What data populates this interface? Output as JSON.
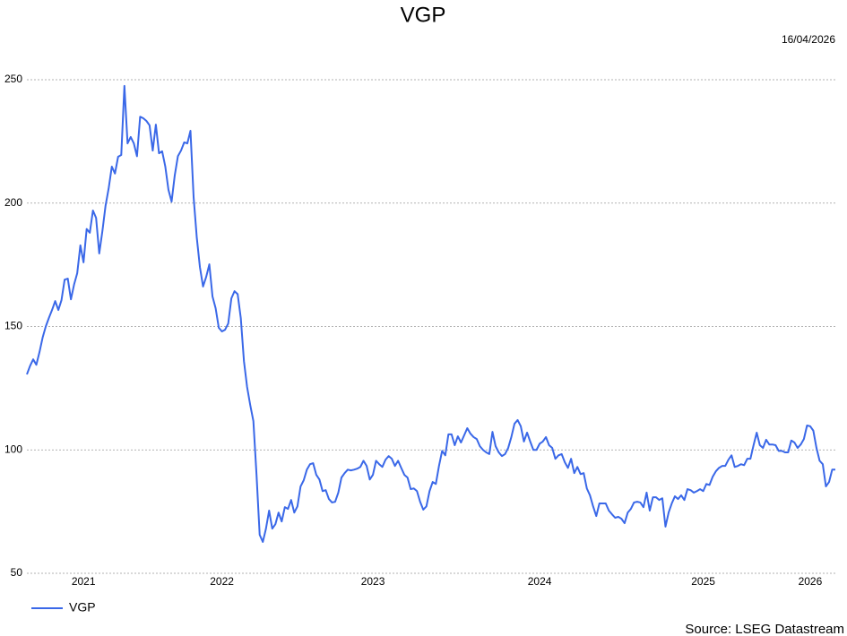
{
  "chart_data": {
    "type": "line",
    "title": "VGP",
    "date": "16/04/2026",
    "source": "Source: LSEG Datastream",
    "categories": [
      null,
      null,
      null,
      null,
      null,
      null,
      null,
      null,
      null,
      null,
      null,
      null,
      null,
      null,
      null,
      null,
      null,
      null,
      "2021",
      null,
      null,
      null,
      null,
      null,
      null,
      null,
      null,
      null,
      null,
      null,
      null,
      null,
      null,
      null,
      null,
      null,
      null,
      null,
      null,
      null,
      null,
      null,
      null,
      null,
      null,
      null,
      null,
      null,
      null,
      null,
      null,
      null,
      null,
      null,
      null,
      null,
      null,
      null,
      null,
      null,
      null,
      null,
      "2022",
      null,
      null,
      null,
      null,
      null,
      null,
      null,
      null,
      null,
      null,
      null,
      null,
      null,
      null,
      null,
      null,
      null,
      null,
      null,
      null,
      null,
      null,
      null,
      null,
      null,
      null,
      null,
      null,
      null,
      null,
      null,
      null,
      null,
      null,
      null,
      null,
      null,
      null,
      null,
      null,
      null,
      null,
      null,
      null,
      null,
      null,
      null,
      "2023",
      null,
      null,
      null,
      null,
      null,
      null,
      null,
      null,
      null,
      null,
      null,
      null,
      null,
      null,
      null,
      null,
      null,
      null,
      null,
      null,
      null,
      null,
      null,
      null,
      null,
      null,
      null,
      null,
      null,
      null,
      null,
      null,
      null,
      null,
      null,
      null,
      null,
      null,
      null,
      null,
      null,
      null,
      null,
      null,
      null,
      null,
      null,
      null,
      null,
      null,
      null,
      null,
      "2024",
      null,
      null,
      null,
      null,
      null,
      null,
      null,
      null,
      null,
      null,
      null,
      null,
      null,
      null,
      null,
      null,
      null,
      null,
      null,
      null,
      null,
      null,
      null,
      null,
      null,
      null,
      null,
      null,
      null,
      null,
      null,
      null,
      null,
      null,
      null,
      null,
      null,
      null,
      null,
      null,
      null,
      null,
      null,
      null,
      null,
      null,
      null,
      null,
      null,
      null,
      null,
      "2025",
      null,
      null,
      null,
      null,
      null,
      null,
      null,
      null,
      null,
      null,
      null,
      null,
      null,
      null,
      null,
      null,
      null,
      null,
      null,
      null,
      null,
      null,
      null,
      null,
      null,
      null,
      null,
      null,
      null,
      null,
      null,
      null,
      null,
      "2026",
      null,
      null,
      null,
      null,
      null,
      null,
      null,
      null
    ],
    "series": [
      {
        "name": "VGP",
        "color": "#3a68e8",
        "values": [
          130.6,
          134,
          136.7,
          134.5,
          139.6,
          145.5,
          150,
          153.5,
          156.7,
          160.3,
          156.7,
          160.7,
          169,
          169.4,
          161,
          167,
          171.6,
          182.9,
          176,
          189.5,
          188,
          197,
          194,
          179.6,
          188.6,
          198.9,
          206,
          214.8,
          212,
          218.8,
          219.5,
          247.5,
          224.2,
          226.8,
          224.2,
          219,
          235,
          234.4,
          233.3,
          231.5,
          221.3,
          231.8,
          220.2,
          221,
          214.8,
          205.4,
          200.6,
          211.2,
          219,
          221.3,
          224.6,
          224.2,
          229.3,
          202.4,
          186.1,
          174.1,
          166.2,
          170.1,
          175.2,
          162.2,
          157.4,
          149.5,
          148,
          148.7,
          151.2,
          161.4,
          164.3,
          163.1,
          153.4,
          136,
          125.5,
          118.2,
          111.7,
          89.9,
          65.6,
          62.7,
          68.1,
          75.4,
          68.1,
          69.9,
          74.6,
          71,
          76.8,
          76.1,
          79.7,
          74.6,
          77.1,
          85.2,
          87.7,
          92,
          94.2,
          94.6,
          89.9,
          88,
          83.3,
          83.7,
          80.1,
          78.7,
          79,
          82.7,
          88.8,
          90.6,
          92,
          91.7,
          92,
          92.4,
          93.1,
          95.6,
          93.5,
          88,
          89.9,
          95.6,
          94.2,
          93.1,
          96,
          97.5,
          96.4,
          93.5,
          95.6,
          92.7,
          89.9,
          88.8,
          84.1,
          84.4,
          83.3,
          79,
          75.8,
          77.1,
          83.3,
          87,
          86.2,
          93.5,
          99.6,
          97.8,
          106.3,
          106.3,
          101.9,
          105.5,
          103,
          105.9,
          108.8,
          106.6,
          105.2,
          104.4,
          101.5,
          100,
          99,
          98.3,
          107.3,
          101.5,
          99,
          97.5,
          98.3,
          100.8,
          105.2,
          110.6,
          112.1,
          109.6,
          103.4,
          107,
          103.4,
          100,
          100,
          102.5,
          103.4,
          105.2,
          101.9,
          100.8,
          96.4,
          97.8,
          98.3,
          95,
          92.7,
          96.4,
          90.6,
          93.1,
          90.2,
          90.6,
          84.4,
          81.6,
          77.1,
          73.2,
          78.3,
          78.3,
          78.3,
          75.4,
          73.9,
          72.5,
          72.9,
          72.1,
          70.3,
          74.6,
          76.1,
          78.7,
          79,
          78.7,
          76.8,
          82.7,
          75.4,
          80.8,
          80.8,
          79.7,
          80.4,
          68.9,
          74.6,
          78.3,
          81.2,
          80.1,
          81.6,
          79.7,
          84.1,
          83.7,
          82.7,
          83.3,
          84.1,
          83.3,
          86.2,
          85.8,
          89.1,
          91.3,
          92.7,
          93.5,
          93.5,
          96,
          97.8,
          93.1,
          93.5,
          94.2,
          93.8,
          96.4,
          96.4,
          101.9,
          107,
          101.9,
          100.8,
          104.1,
          102.2,
          102.2,
          101.9,
          99.6,
          99.6,
          99,
          99,
          103.8,
          103,
          100.8,
          102.2,
          104.4,
          109.9,
          109.6,
          107.8,
          100.8,
          95.6,
          94.2,
          85.2,
          87,
          92,
          92
        ]
      }
    ],
    "ylim": [
      50,
      250
    ],
    "yticks": [
      50,
      100,
      150,
      200,
      250
    ],
    "grid": true,
    "legend": "bottom-left"
  }
}
